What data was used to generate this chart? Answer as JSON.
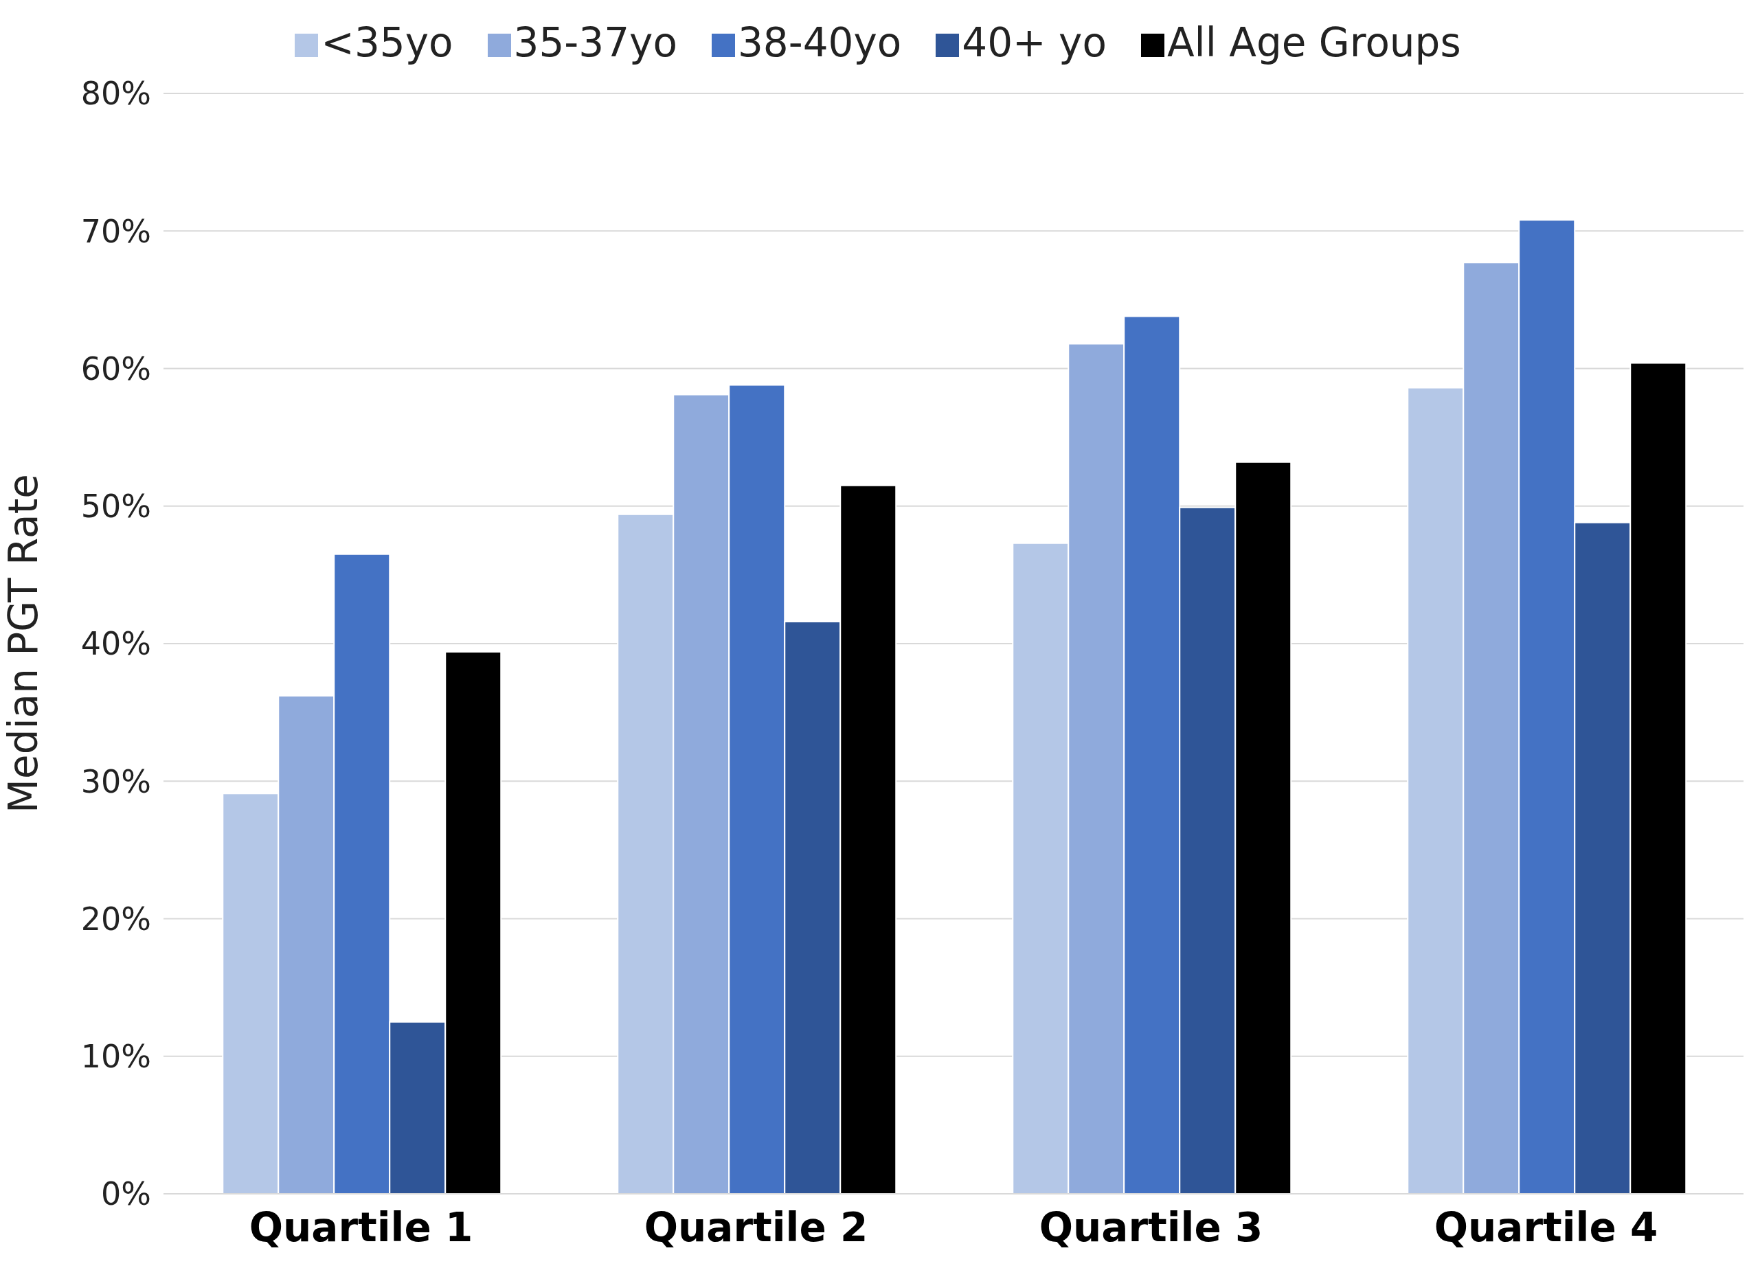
{
  "chart_data": {
    "type": "bar",
    "ylabel": "Median PGT Rate",
    "categories": [
      "Quartile 1",
      "Quartile 2",
      "Quartile 3",
      "Quartile 4"
    ],
    "series": [
      {
        "name": "<35yo",
        "color": "#b4c7e7",
        "values": [
          29.1,
          49.4,
          47.3,
          58.6
        ]
      },
      {
        "name": "35-37yo",
        "color": "#8faadc",
        "values": [
          36.2,
          58.1,
          61.8,
          67.7
        ]
      },
      {
        "name": "38-40yo",
        "color": "#4472c4",
        "values": [
          46.5,
          58.8,
          63.8,
          70.8
        ]
      },
      {
        "name": "40+ yo",
        "color": "#2f5597",
        "values": [
          12.5,
          41.6,
          49.9,
          48.8
        ]
      },
      {
        "name": "All Age Groups",
        "color": "#000000",
        "values": [
          39.4,
          51.5,
          53.2,
          60.4
        ]
      }
    ],
    "ylim": [
      0,
      80
    ],
    "yticks": [
      {
        "value": 0,
        "label": "0%"
      },
      {
        "value": 10,
        "label": "10%"
      },
      {
        "value": 20,
        "label": "20%"
      },
      {
        "value": 30,
        "label": "30%"
      },
      {
        "value": 40,
        "label": "40%"
      },
      {
        "value": 50,
        "label": "50%"
      },
      {
        "value": 60,
        "label": "60%"
      },
      {
        "value": 70,
        "label": "70%"
      },
      {
        "value": 80,
        "label": "80%"
      }
    ],
    "grid": "y",
    "legend": "top"
  }
}
